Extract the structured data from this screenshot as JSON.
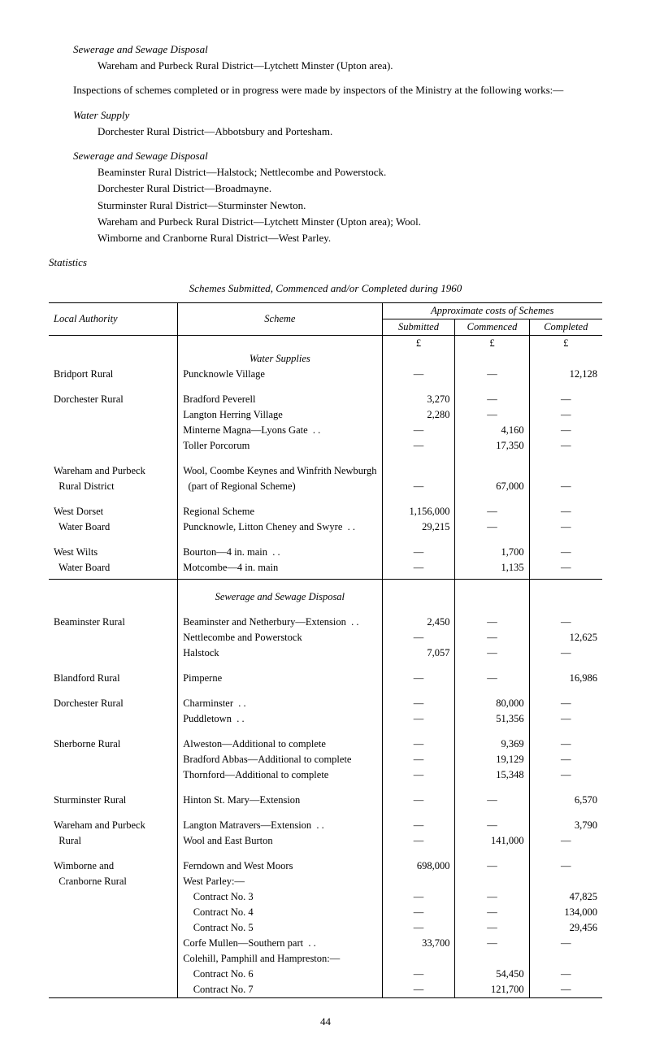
{
  "intro": {
    "sew_title": "Sewerage and Sewage Disposal",
    "sew_line": "Wareham and Purbeck Rural District—Lytchett Minster (Upton area).",
    "insp_line": "Inspections of schemes completed or in progress were made by inspectors of the Ministry at the following works:—",
    "water_title": "Water Supply",
    "water_line": "Dorchester Rural District—Abbotsbury and Portesham.",
    "sew2_title": "Sewerage and Sewage Disposal",
    "sew2_lines": [
      "Beaminster Rural District—Halstock; Nettlecombe and Powerstock.",
      "Dorchester Rural District—Broadmayne.",
      "Sturminster Rural District—Sturminster Newton.",
      "Wareham and Purbeck Rural District—Lytchett Minster (Upton area); Wool.",
      "Wimborne and Cranborne Rural District—West Parley."
    ],
    "stats": "Statistics",
    "caption": "Schemes Submitted, Commenced and/or Completed during 1960"
  },
  "headers": {
    "local_auth": "Local Authority",
    "scheme": "Scheme",
    "approx": "Approximate costs of Schemes",
    "submitted": "Submitted",
    "commenced": "Commenced",
    "completed": "Completed",
    "pound": "£",
    "water_supplies": "Water Supplies",
    "sewage": "Sewerage and Sewage Disposal"
  },
  "water": [
    {
      "auth": "Bridport Rural",
      "scheme": "Puncknowle Village",
      "s": "—",
      "c": "—",
      "p": "12,128"
    },
    {
      "auth": "Dorchester Rural",
      "scheme": "Bradford Peverell",
      "s": "3,270",
      "c": "—",
      "p": "—"
    },
    {
      "auth": "",
      "scheme": "Langton Herring Village",
      "s": "2,280",
      "c": "—",
      "p": "—"
    },
    {
      "auth": "",
      "scheme": "Minterne Magna—Lyons Gate  . .",
      "s": "—",
      "c": "4,160",
      "p": "—"
    },
    {
      "auth": "",
      "scheme": "Toller Porcorum",
      "s": "—",
      "c": "17,350",
      "p": "—"
    },
    {
      "auth": "Wareham and Purbeck",
      "scheme": "Wool, Coombe Keynes and Winfrith Newburgh",
      "s": "",
      "c": "",
      "p": ""
    },
    {
      "auth": "  Rural District",
      "scheme": "  (part of Regional Scheme)",
      "s": "—",
      "c": "67,000",
      "p": "—"
    },
    {
      "auth": "West Dorset",
      "scheme": "Regional Scheme",
      "s": "1,156,000",
      "c": "—",
      "p": "—"
    },
    {
      "auth": "  Water Board",
      "scheme": "Puncknowle, Litton Cheney and Swyre  . .",
      "s": "29,215",
      "c": "—",
      "p": "—"
    },
    {
      "auth": "West Wilts",
      "scheme": "Bourton—4 in. main  . .",
      "s": "—",
      "c": "1,700",
      "p": "—"
    },
    {
      "auth": "  Water Board",
      "scheme": "Motcombe—4 in. main",
      "s": "—",
      "c": "1,135",
      "p": "—"
    }
  ],
  "sewage": [
    {
      "auth": "Beaminster Rural",
      "scheme": "Beaminster and Netherbury—Extension  . .",
      "s": "2,450",
      "c": "—",
      "p": "—"
    },
    {
      "auth": "",
      "scheme": "Nettlecombe and Powerstock",
      "s": "—",
      "c": "—",
      "p": "12,625"
    },
    {
      "auth": "",
      "scheme": "Halstock",
      "s": "7,057",
      "c": "—",
      "p": "—"
    },
    {
      "auth": "Blandford Rural",
      "scheme": "Pimperne",
      "s": "—",
      "c": "—",
      "p": "16,986"
    },
    {
      "auth": "Dorchester Rural",
      "scheme": "Charminster  . .",
      "s": "—",
      "c": "80,000",
      "p": "—"
    },
    {
      "auth": "",
      "scheme": "Puddletown  . .",
      "s": "—",
      "c": "51,356",
      "p": "—"
    },
    {
      "auth": "Sherborne Rural",
      "scheme": "Alweston—Additional to complete",
      "s": "—",
      "c": "9,369",
      "p": "—"
    },
    {
      "auth": "",
      "scheme": "Bradford Abbas—Additional to complete",
      "s": "—",
      "c": "19,129",
      "p": "—"
    },
    {
      "auth": "",
      "scheme": "Thornford—Additional to complete",
      "s": "—",
      "c": "15,348",
      "p": "—"
    },
    {
      "auth": "Sturminster Rural",
      "scheme": "Hinton St. Mary—Extension",
      "s": "—",
      "c": "—",
      "p": "6,570"
    },
    {
      "auth": "Wareham and Purbeck",
      "scheme": "Langton Matravers—Extension  . .",
      "s": "—",
      "c": "—",
      "p": "3,790"
    },
    {
      "auth": "  Rural",
      "scheme": "Wool and East Burton",
      "s": "—",
      "c": "141,000",
      "p": "—"
    },
    {
      "auth": "Wimborne and",
      "scheme": "Ferndown and West Moors",
      "s": "698,000",
      "c": "—",
      "p": "—"
    },
    {
      "auth": "  Cranborne Rural",
      "scheme": "West Parley:—",
      "s": "",
      "c": "",
      "p": ""
    },
    {
      "auth": "",
      "scheme": "    Contract No. 3",
      "s": "—",
      "c": "—",
      "p": "47,825"
    },
    {
      "auth": "",
      "scheme": "    Contract No. 4",
      "s": "—",
      "c": "—",
      "p": "134,000"
    },
    {
      "auth": "",
      "scheme": "    Contract No. 5",
      "s": "—",
      "c": "—",
      "p": "29,456"
    },
    {
      "auth": "",
      "scheme": "Corfe Mullen—Southern part  . .",
      "s": "33,700",
      "c": "—",
      "p": "—"
    },
    {
      "auth": "",
      "scheme": "Colehill, Pamphill and Hampreston:—",
      "s": "",
      "c": "",
      "p": ""
    },
    {
      "auth": "",
      "scheme": "    Contract No. 6",
      "s": "—",
      "c": "54,450",
      "p": "—"
    },
    {
      "auth": "",
      "scheme": "    Contract No. 7",
      "s": "—",
      "c": "121,700",
      "p": "—"
    }
  ],
  "page": "44"
}
